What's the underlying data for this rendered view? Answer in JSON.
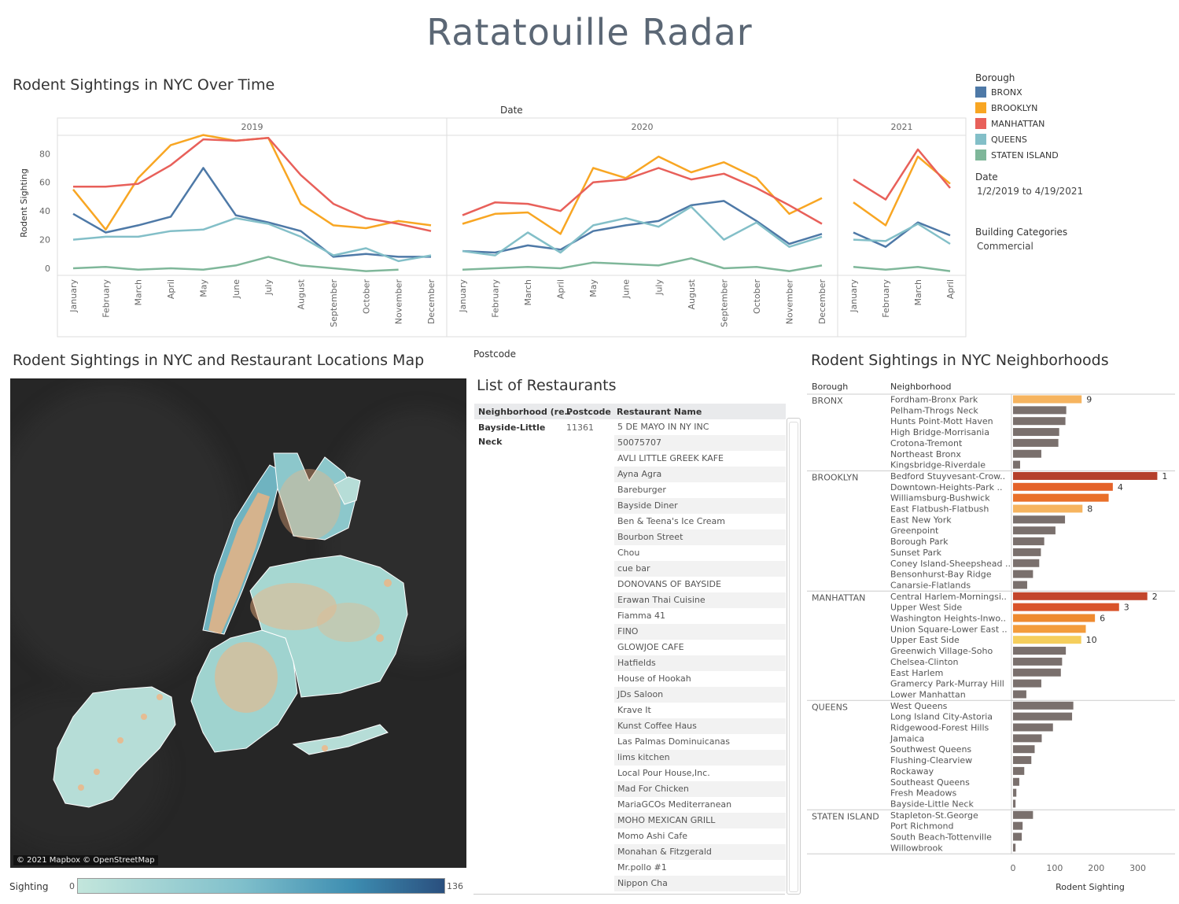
{
  "dashboard_title": "Ratatouille Radar",
  "line_chart": {
    "title": "Rodent Sightings in NYC Over Time",
    "top_axis_label": "Date",
    "ylabel": "Rodent Sighting",
    "year_panels": [
      "2019",
      "2020",
      "2021"
    ],
    "chart_data": {
      "type": "line",
      "y_ticks": [
        0,
        20,
        40,
        60,
        80
      ],
      "ylim": [
        0,
        95
      ],
      "panels": [
        {
          "year": "2019",
          "months": [
            "January",
            "February",
            "March",
            "April",
            "May",
            "June",
            "July",
            "August",
            "September",
            "October",
            "November",
            "December"
          ]
        },
        {
          "year": "2020",
          "months": [
            "January",
            "February",
            "March",
            "April",
            "May",
            "June",
            "July",
            "August",
            "September",
            "October",
            "November",
            "December"
          ]
        },
        {
          "year": "2021",
          "months": [
            "January",
            "February",
            "March",
            "April"
          ]
        }
      ],
      "series": [
        {
          "name": "BRONX",
          "color": "#4e79a7",
          "values": [
            [
              38,
              25,
              30,
              36,
              70,
              37,
              32,
              26,
              8,
              10,
              8,
              8
            ],
            [
              12,
              11,
              16,
              13,
              26,
              30,
              33,
              44,
              47,
              33,
              17,
              24
            ],
            [
              25,
              15,
              32,
              23
            ]
          ]
        },
        {
          "name": "BROOKLYN",
          "color": "#f8a623",
          "values": [
            [
              55,
              27,
              63,
              86,
              93,
              89,
              91,
              45,
              30,
              28,
              33,
              30
            ],
            [
              31,
              38,
              39,
              24,
              70,
              63,
              78,
              67,
              74,
              63,
              38,
              49
            ],
            [
              46,
              30,
              78,
              59
            ]
          ]
        },
        {
          "name": "MANHATTAN",
          "color": "#e8605a",
          "values": [
            [
              57,
              57,
              59,
              72,
              90,
              89,
              91,
              65,
              45,
              35,
              31,
              26
            ],
            [
              37,
              46,
              45,
              40,
              60,
              62,
              70,
              62,
              66,
              56,
              44,
              31
            ],
            [
              62,
              48,
              83,
              56
            ]
          ]
        },
        {
          "name": "QUEENS",
          "color": "#83bfc8",
          "values": [
            [
              20,
              22,
              22,
              26,
              27,
              35,
              31,
              22,
              9,
              14,
              5,
              9
            ],
            [
              12,
              9,
              25,
              11,
              30,
              35,
              29,
              43,
              20,
              32,
              15,
              22
            ],
            [
              20,
              19,
              31,
              17
            ]
          ]
        },
        {
          "name": "STATEN ISLAND",
          "color": "#7fb79a",
          "values": [
            [
              0,
              1,
              -1,
              0,
              -1,
              2,
              8,
              2,
              0,
              -2,
              -1,
              null
            ],
            [
              -1,
              0,
              1,
              0,
              4,
              3,
              2,
              7,
              0,
              1,
              -2,
              2
            ],
            [
              1,
              -1,
              1,
              -2
            ]
          ]
        }
      ]
    }
  },
  "legend": {
    "borough_title": "Borough",
    "items": [
      {
        "label": "BRONX",
        "color": "#4e79a7"
      },
      {
        "label": "BROOKLYN",
        "color": "#f8a623"
      },
      {
        "label": "MANHATTAN",
        "color": "#e8605a"
      },
      {
        "label": "QUEENS",
        "color": "#83bfc8"
      },
      {
        "label": "STATEN ISLAND",
        "color": "#7fb79a"
      }
    ],
    "date_title": "Date",
    "date_value": "1/2/2019 to 4/19/2021",
    "building_title": "Building Categories",
    "building_value": "Commercial"
  },
  "map": {
    "title": "Rodent Sightings in NYC and Restaurant Locations Map",
    "attribution": "© 2021 Mapbox © OpenStreetMap",
    "color_legend_label": "Sighting",
    "color_min": "0",
    "color_max": "136",
    "color_low": "#c3e6dc",
    "color_high": "#2a4f7e"
  },
  "restaurants": {
    "postcode_label": "Postcode",
    "title": "List of Restaurants",
    "col_neighborhood": "Neighborhood (re..",
    "col_postcode": "Postcode",
    "col_name": "Restaurant Name",
    "neighborhood_line1": "Bayside-Little",
    "neighborhood_line2": "Neck",
    "postcode": "11361",
    "names": [
      "5 DE MAYO IN NY INC",
      "50075707",
      "AVLI LITTLE GREEK KAFE",
      "Ayna Agra",
      "Bareburger",
      "Bayside Diner",
      "Ben & Teena's Ice Cream",
      "Bourbon Street",
      "Chou",
      "cue bar",
      "DONOVANS OF BAYSIDE",
      "Erawan Thai Cuisine",
      "Fiamma 41",
      "FINO",
      "GLOWJOE CAFE",
      "Hatfields",
      "House of Hookah",
      "JDs Saloon",
      "Krave It",
      "Kunst Coffee Haus",
      "Las Palmas Dominuicanas",
      "lims kitchen",
      "Local Pour House,Inc.",
      "Mad For Chicken",
      "MariaGCOs Mediterranean",
      "MOHO MEXICAN GRILL",
      "Momo Ashi Cafe",
      "Monahan & Fitzgerald",
      "Mr.pollo #1",
      "Nippon Cha"
    ]
  },
  "neighborhoods": {
    "title": "Rodent Sightings in NYC Neighborhoods",
    "col_borough": "Borough",
    "col_neighborhood": "Neighborhood",
    "xlabel": "Rodent Sighting",
    "x_ticks": [
      0,
      100,
      200,
      300
    ],
    "chart_data": {
      "type": "bar",
      "xlim": [
        0,
        350
      ],
      "groups": [
        {
          "borough": "BRONX",
          "rows": [
            {
              "name": "Fordham-Bronx Park",
              "value": 165,
              "rank": "9",
              "color": "#f6b45f"
            },
            {
              "name": "Pelham-Throgs Neck",
              "value": 128
            },
            {
              "name": "Hunts Point-Mott Haven",
              "value": 126
            },
            {
              "name": "High Bridge-Morrisania",
              "value": 111
            },
            {
              "name": "Crotona-Tremont",
              "value": 109
            },
            {
              "name": "Northeast Bronx",
              "value": 68
            },
            {
              "name": "Kingsbridge-Riverdale",
              "value": 17
            }
          ]
        },
        {
          "borough": "BROOKLYN",
          "rows": [
            {
              "name": "Bedford Stuyvesant-Crow..",
              "value": 347,
              "rank": "1",
              "color": "#b5402b"
            },
            {
              "name": "Downtown-Heights-Park ..",
              "value": 240,
              "rank": "4",
              "color": "#e4632a"
            },
            {
              "name": "Williamsburg-Bushwick",
              "value": 230,
              "color": "#e9702a"
            },
            {
              "name": "East Flatbush-Flatbush",
              "value": 167,
              "rank": "8",
              "color": "#f6b45f"
            },
            {
              "name": "East New York",
              "value": 125
            },
            {
              "name": "Greenpoint",
              "value": 102
            },
            {
              "name": "Borough Park",
              "value": 75
            },
            {
              "name": "Sunset Park",
              "value": 67
            },
            {
              "name": "Coney Island-Sheepshead ..",
              "value": 63
            },
            {
              "name": "Bensonhurst-Bay Ridge",
              "value": 48
            },
            {
              "name": "Canarsie-Flatlands",
              "value": 34
            }
          ]
        },
        {
          "borough": "MANHATTAN",
          "rows": [
            {
              "name": "Central Harlem-Morningsi..",
              "value": 323,
              "rank": "2",
              "color": "#c3462c"
            },
            {
              "name": "Upper West Side",
              "value": 255,
              "rank": "3",
              "color": "#d9532a"
            },
            {
              "name": "Washington Heights-Inwo..",
              "value": 197,
              "rank": "6",
              "color": "#ee8a30"
            },
            {
              "name": "Union Square-Lower East ..",
              "value": 175,
              "color": "#f39c3c"
            },
            {
              "name": "Upper East Side",
              "value": 164,
              "rank": "10",
              "color": "#f5ce5c"
            },
            {
              "name": "Greenwich Village-Soho",
              "value": 127
            },
            {
              "name": "Chelsea-Clinton",
              "value": 118
            },
            {
              "name": "East Harlem",
              "value": 115
            },
            {
              "name": "Gramercy Park-Murray Hill",
              "value": 68
            },
            {
              "name": "Lower Manhattan",
              "value": 32
            }
          ]
        },
        {
          "borough": "QUEENS",
          "rows": [
            {
              "name": "West Queens",
              "value": 145
            },
            {
              "name": "Long Island City-Astoria",
              "value": 142
            },
            {
              "name": "Ridgewood-Forest Hills",
              "value": 96
            },
            {
              "name": "Jamaica",
              "value": 69
            },
            {
              "name": "Southwest Queens",
              "value": 52
            },
            {
              "name": "Flushing-Clearview",
              "value": 44
            },
            {
              "name": "Rockaway",
              "value": 27
            },
            {
              "name": "Southeast Queens",
              "value": 15
            },
            {
              "name": "Fresh Meadows",
              "value": 8
            },
            {
              "name": "Bayside-Little Neck",
              "value": 6
            }
          ]
        },
        {
          "borough": "STATEN ISLAND",
          "rows": [
            {
              "name": "Stapleton-St.George",
              "value": 48
            },
            {
              "name": "Port Richmond",
              "value": 23
            },
            {
              "name": "South Beach-Tottenville",
              "value": 21
            },
            {
              "name": "Willowbrook",
              "value": 6
            }
          ]
        }
      ]
    }
  }
}
